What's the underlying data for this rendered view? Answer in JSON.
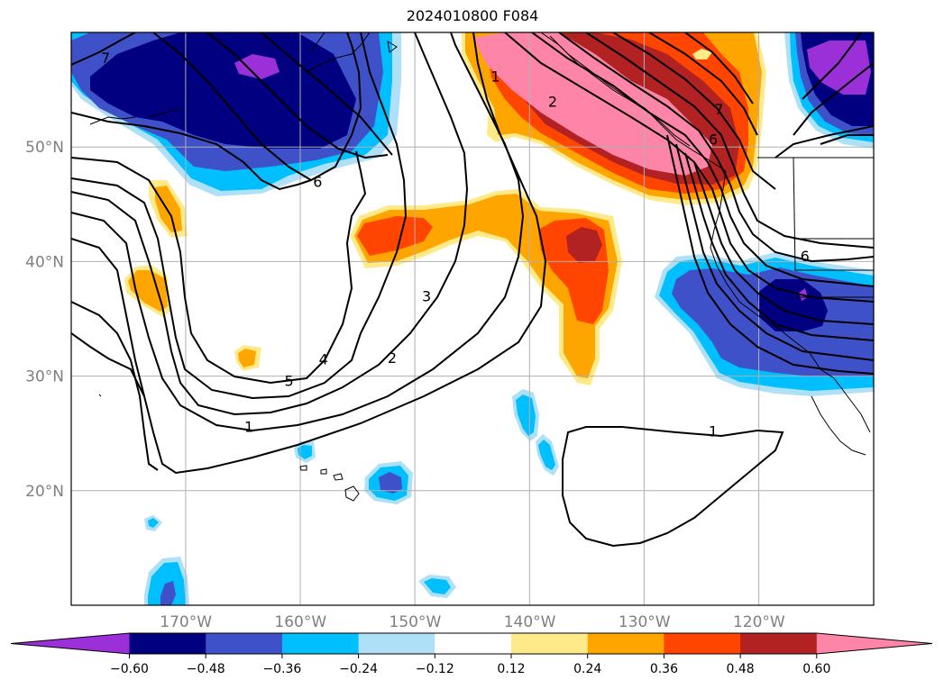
{
  "title": "2024010800 F084",
  "lat_labels": [
    {
      "lat": 50,
      "text": "50°N"
    },
    {
      "lat": 40,
      "text": "40°N"
    },
    {
      "lat": 30,
      "text": "30°N"
    },
    {
      "lat": 20,
      "text": "20°N"
    }
  ],
  "lon_labels": [
    {
      "lon": -170,
      "text": "170°W"
    },
    {
      "lon": -160,
      "text": "160°W"
    },
    {
      "lon": -150,
      "text": "150°W"
    },
    {
      "lon": -140,
      "text": "140°W"
    },
    {
      "lon": -130,
      "text": "130°W"
    },
    {
      "lon": -120,
      "text": "120°W"
    }
  ],
  "extent": {
    "lon_min": -180,
    "lon_max": -110,
    "lat_min": 10,
    "lat_max": 60
  },
  "colorbar": {
    "colors": [
      "#9b30d9",
      "#000080",
      "#3f51c8",
      "#00bfff",
      "#aee0f8",
      "#ffffff",
      "#ffea8a",
      "#ffa500",
      "#ff4500",
      "#b22222",
      "#ff85a8"
    ],
    "ticks": [
      "−0.60",
      "−0.48",
      "−0.36",
      "−0.24",
      "−0.12",
      "0.12",
      "0.24",
      "0.36",
      "0.48",
      "0.60"
    ]
  },
  "colors": {
    "pos_light": "#ffea8a",
    "pos_orange": "#ffa500",
    "pos_red": "#ff4500",
    "pos_dark": "#b22222",
    "pos_pink": "#ff85a8",
    "neg_light": "#aee0f8",
    "neg_cyan": "#00bfff",
    "neg_blue": "#3f51c8",
    "neg_navy": "#000080",
    "neg_purple": "#9b30d9"
  },
  "contour_labels": [
    {
      "text": "7",
      "lon": -177,
      "lat": 57.8
    },
    {
      "text": "6",
      "lon": -158.5,
      "lat": 47
    },
    {
      "text": "1",
      "lon": -143,
      "lat": 56.2
    },
    {
      "text": "2",
      "lon": -138,
      "lat": 54
    },
    {
      "text": "7",
      "lon": -123.5,
      "lat": 53.3
    },
    {
      "text": "6",
      "lon": -124,
      "lat": 50.7
    },
    {
      "text": "6",
      "lon": -116,
      "lat": 40.5
    },
    {
      "text": "5",
      "lon": -161,
      "lat": 29.6
    },
    {
      "text": "4",
      "lon": -158,
      "lat": 31.5
    },
    {
      "text": "3",
      "lon": -149,
      "lat": 37
    },
    {
      "text": "2",
      "lon": -152,
      "lat": 31.6
    },
    {
      "text": "1",
      "lon": -164.5,
      "lat": 25.6
    },
    {
      "text": "1",
      "lon": -124,
      "lat": 25.2
    }
  ]
}
